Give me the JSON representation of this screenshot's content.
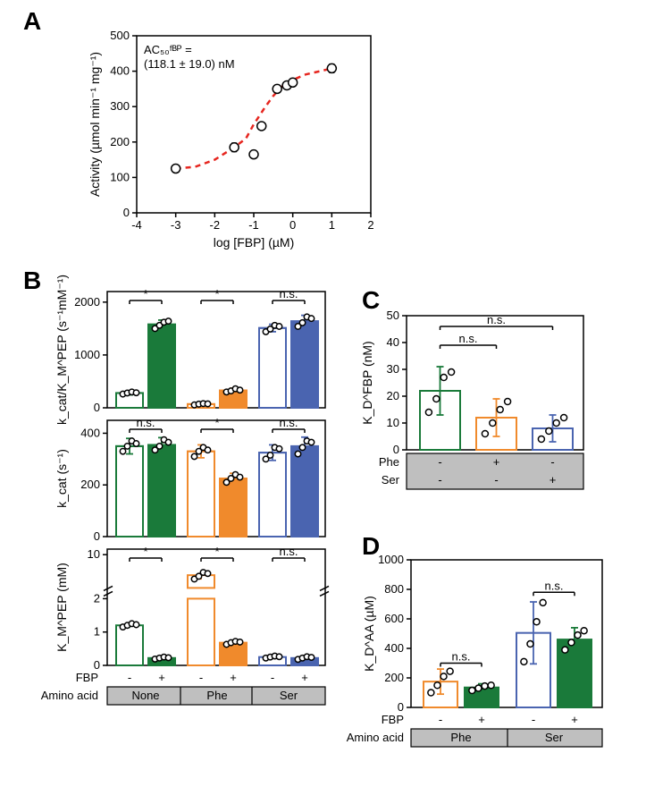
{
  "panelA": {
    "label": "A",
    "type": "scatter-fit",
    "xlabel": "log [FBP] (µM)",
    "ylabel": "Activity (µmol min⁻¹ mg⁻¹)",
    "xlim": [
      -4,
      2
    ],
    "ylim": [
      0,
      500
    ],
    "xticks": [
      -4,
      -3,
      -2,
      -1,
      0,
      1,
      2
    ],
    "yticks": [
      0,
      100,
      200,
      300,
      400,
      500
    ],
    "annot_line1": "AC₅₀ᶠᴮᴾ =",
    "annot_line2": "(118.1 ± 19.0) nM",
    "curve_color": "#e6261f",
    "curve_pts": [
      [
        -3.0,
        125
      ],
      [
        -2.5,
        130
      ],
      [
        -2.0,
        150
      ],
      [
        -1.5,
        185
      ],
      [
        -1.2,
        210
      ],
      [
        -1.0,
        250
      ],
      [
        -0.7,
        300
      ],
      [
        -0.5,
        330
      ],
      [
        -0.3,
        355
      ],
      [
        0,
        375
      ],
      [
        0.3,
        390
      ],
      [
        0.7,
        400
      ],
      [
        1,
        408
      ]
    ],
    "points": [
      {
        "x": -3.0,
        "y": 125,
        "err": 10
      },
      {
        "x": -1.5,
        "y": 185,
        "err": 12
      },
      {
        "x": -1.0,
        "y": 165,
        "err": 8
      },
      {
        "x": -0.8,
        "y": 245,
        "err": 7
      },
      {
        "x": -0.4,
        "y": 350,
        "err": 8
      },
      {
        "x": -0.15,
        "y": 360,
        "err": 7
      },
      {
        "x": 0.0,
        "y": 368,
        "err": 8
      },
      {
        "x": 1.0,
        "y": 408,
        "err": 12
      }
    ]
  },
  "panelB": {
    "label": "B",
    "colors": {
      "green": "#1a7a3a",
      "orange": "#f08a2c",
      "blue": "#4a64b0"
    },
    "groups": [
      "None",
      "Phe",
      "Ser"
    ],
    "fbp_row_label": "FBP",
    "aa_row_label": "Amino acid",
    "fbp_marks": [
      "-",
      "+",
      "-",
      "+",
      "-",
      "+"
    ],
    "sub1": {
      "ylabel": "k_cat/K_M^PEP (s⁻¹mM⁻¹)",
      "ylim": [
        0,
        2200
      ],
      "yticks": [
        0,
        1000,
        2000
      ],
      "bars": [
        {
          "val": 280,
          "err": 35,
          "color": "green",
          "filled": false,
          "dots": [
            260,
            280,
            300,
            285
          ]
        },
        {
          "val": 1580,
          "err": 80,
          "color": "green",
          "filled": true,
          "dots": [
            1500,
            1560,
            1620,
            1640
          ]
        },
        {
          "val": 70,
          "err": 25,
          "color": "orange",
          "filled": false,
          "dots": [
            55,
            70,
            80,
            75
          ]
        },
        {
          "val": 330,
          "err": 40,
          "color": "orange",
          "filled": true,
          "dots": [
            300,
            320,
            360,
            335
          ]
        },
        {
          "val": 1510,
          "err": 70,
          "color": "blue",
          "filled": false,
          "dots": [
            1440,
            1490,
            1560,
            1540
          ]
        },
        {
          "val": 1640,
          "err": 110,
          "color": "blue",
          "filled": true,
          "dots": [
            1540,
            1610,
            1720,
            1690
          ]
        }
      ],
      "sig": [
        "*",
        "*",
        "n.s."
      ]
    },
    "sub2": {
      "ylabel": "k_cat (s⁻¹)",
      "ylim": [
        0,
        450
      ],
      "yticks": [
        0,
        200,
        400
      ],
      "bars": [
        {
          "val": 350,
          "err": 30,
          "color": "green",
          "filled": false,
          "dots": [
            330,
            350,
            370,
            360
          ]
        },
        {
          "val": 355,
          "err": 28,
          "color": "green",
          "filled": true,
          "dots": [
            335,
            350,
            375,
            365
          ]
        },
        {
          "val": 330,
          "err": 25,
          "color": "orange",
          "filled": false,
          "dots": [
            310,
            330,
            345,
            335
          ]
        },
        {
          "val": 225,
          "err": 20,
          "color": "orange",
          "filled": true,
          "dots": [
            210,
            225,
            240,
            230
          ]
        },
        {
          "val": 325,
          "err": 30,
          "color": "blue",
          "filled": false,
          "dots": [
            300,
            315,
            345,
            340
          ]
        },
        {
          "val": 350,
          "err": 35,
          "color": "blue",
          "filled": true,
          "dots": [
            320,
            345,
            370,
            365
          ]
        }
      ],
      "sig": [
        "n.s.",
        "*",
        "n.s."
      ]
    },
    "sub3": {
      "ylabel": "K_M^PEP (mM)",
      "yticks_low": [
        0,
        1,
        2
      ],
      "yticks_high": [
        10
      ],
      "break_low": 2,
      "break_high": 4,
      "ymax": 11,
      "bars": [
        {
          "val": 1.2,
          "err": 0.08,
          "color": "green",
          "filled": false,
          "dots": [
            1.15,
            1.2,
            1.25,
            1.22
          ],
          "high": false
        },
        {
          "val": 0.22,
          "err": 0.04,
          "color": "green",
          "filled": true,
          "dots": [
            0.19,
            0.22,
            0.25,
            0.23
          ],
          "high": false
        },
        {
          "val": 6.3,
          "err": 0.8,
          "color": "orange",
          "filled": false,
          "dots": [
            5.6,
            6.1,
            6.8,
            6.6
          ],
          "high": true
        },
        {
          "val": 0.68,
          "err": 0.06,
          "color": "orange",
          "filled": true,
          "dots": [
            0.63,
            0.68,
            0.72,
            0.7
          ],
          "high": false
        },
        {
          "val": 0.25,
          "err": 0.04,
          "color": "blue",
          "filled": false,
          "dots": [
            0.22,
            0.25,
            0.28,
            0.26
          ],
          "high": false
        },
        {
          "val": 0.22,
          "err": 0.05,
          "color": "blue",
          "filled": true,
          "dots": [
            0.18,
            0.22,
            0.26,
            0.24
          ],
          "high": false
        }
      ],
      "sig": [
        "*",
        "*",
        "n.s."
      ]
    }
  },
  "panelC": {
    "label": "C",
    "ylabel": "K_D^FBP (nM)",
    "ylim": [
      0,
      50
    ],
    "yticks": [
      0,
      10,
      20,
      30,
      40,
      50
    ],
    "colors": {
      "green": "#1a7a3a",
      "orange": "#f08a2c",
      "blue": "#4a64b0"
    },
    "bars": [
      {
        "val": 22,
        "err": 9,
        "color": "green",
        "dots": [
          14,
          19,
          27,
          29
        ]
      },
      {
        "val": 12,
        "err": 7,
        "color": "orange",
        "dots": [
          6,
          10,
          15,
          18
        ]
      },
      {
        "val": 8,
        "err": 5,
        "color": "blue",
        "dots": [
          4,
          7,
          10,
          12
        ]
      }
    ],
    "sig": [
      {
        "from": 0,
        "to": 2,
        "label": "n.s.",
        "y": 46
      },
      {
        "from": 0,
        "to": 1,
        "label": "n.s.",
        "y": 39
      }
    ],
    "cat_rows": [
      {
        "label": "Phe",
        "marks": [
          "-",
          "+",
          "-"
        ]
      },
      {
        "label": "Ser",
        "marks": [
          "-",
          "-",
          "+"
        ]
      }
    ]
  },
  "panelD": {
    "label": "D",
    "ylabel": "K_D^AA (µM)",
    "ylim": [
      0,
      1000
    ],
    "yticks": [
      0,
      200,
      400,
      600,
      800,
      1000
    ],
    "colors": {
      "green": "#1a7a3a",
      "orange": "#f08a2c",
      "blue": "#4a64b0"
    },
    "bars": [
      {
        "val": 175,
        "err": 85,
        "color": "orange",
        "filled": false,
        "dots": [
          100,
          150,
          210,
          245
        ]
      },
      {
        "val": 135,
        "err": 25,
        "color": "green",
        "filled": true,
        "dots": [
          115,
          130,
          145,
          150
        ]
      },
      {
        "val": 505,
        "err": 210,
        "color": "blue",
        "filled": false,
        "dots": [
          310,
          430,
          580,
          710
        ]
      },
      {
        "val": 460,
        "err": 80,
        "color": "green",
        "filled": true,
        "dots": [
          390,
          440,
          490,
          520
        ]
      }
    ],
    "sig": [
      {
        "from": 0,
        "to": 1,
        "label": "n.s.",
        "y": 300
      },
      {
        "from": 2,
        "to": 3,
        "label": "n.s.",
        "y": 780
      }
    ],
    "fbp_row_label": "FBP",
    "aa_row_label": "Amino acid",
    "fbp_marks": [
      "-",
      "+",
      "-",
      "+"
    ],
    "aa_groups": [
      "Phe",
      "Ser"
    ]
  }
}
